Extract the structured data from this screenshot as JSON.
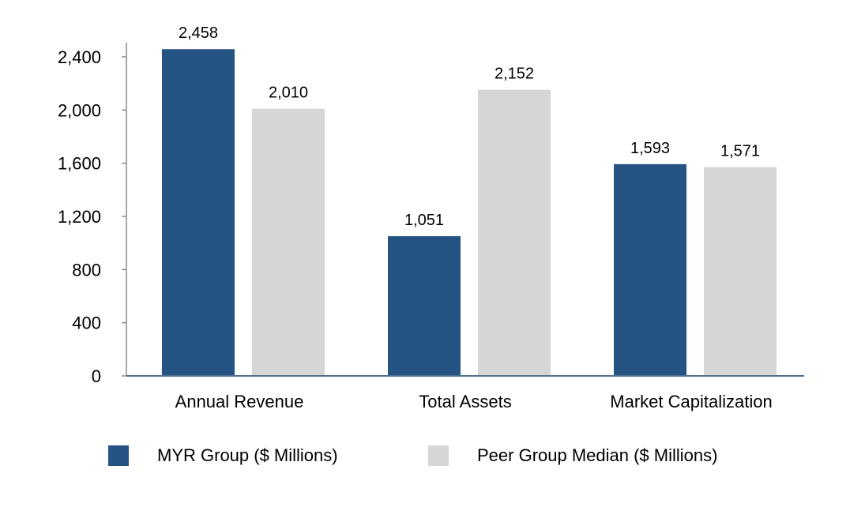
{
  "chart_data": {
    "type": "bar",
    "title": "",
    "xlabel": "",
    "ylabel": "",
    "ylim": [
      0,
      2400
    ],
    "yticks": [
      0,
      400,
      800,
      1200,
      1600,
      2000,
      2400
    ],
    "ytick_labels": [
      "0",
      "400",
      "800",
      "1,200",
      "1,600",
      "2,000",
      "2,400"
    ],
    "grid": false,
    "legend_position": "bottom",
    "categories": [
      "Annual Revenue",
      "Total Assets",
      "Market Capitalization"
    ],
    "series": [
      {
        "name": "MYR Group ($ Millions)",
        "color": "#255484",
        "values": [
          2458,
          1051,
          1593
        ],
        "labels": [
          "2,458",
          "1,051",
          "1,593"
        ]
      },
      {
        "name": "Peer Group Median ($ Millions)",
        "color": "#d6d6d6",
        "values": [
          2010,
          2152,
          1571
        ],
        "labels": [
          "2,010",
          "2,152",
          "1,571"
        ]
      }
    ]
  }
}
